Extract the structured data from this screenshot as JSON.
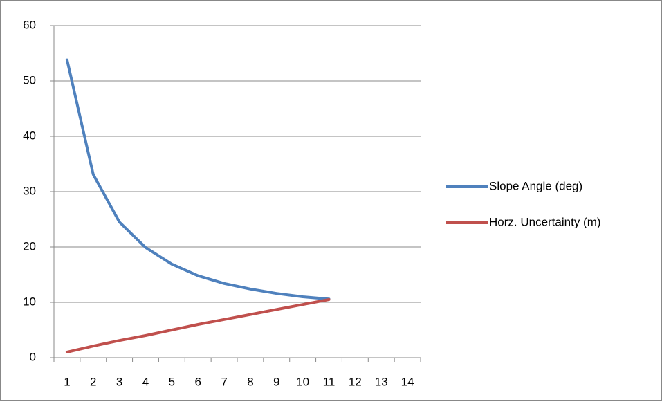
{
  "chart_data": {
    "type": "line",
    "categories": [
      "1",
      "2",
      "3",
      "4",
      "5",
      "6",
      "7",
      "8",
      "9",
      "10",
      "11",
      "12",
      "13",
      "14"
    ],
    "series": [
      {
        "name": "Slope Angle (deg)",
        "color": "#4f81bd",
        "values": [
          53.8,
          33.1,
          24.5,
          19.9,
          16.9,
          14.8,
          13.4,
          12.4,
          11.6,
          11.0,
          10.6,
          null,
          null,
          null
        ]
      },
      {
        "name": "Horz. Uncertainty (m)",
        "color": "#c0504d",
        "values": [
          1.0,
          2.1,
          3.1,
          4.0,
          5.0,
          6.0,
          6.9,
          7.8,
          8.7,
          9.6,
          10.5,
          null,
          null,
          null
        ]
      }
    ],
    "ylim": [
      0,
      60
    ],
    "yticks": [
      0,
      10,
      20,
      30,
      40,
      50,
      60
    ],
    "grid": true,
    "legend": "right"
  }
}
